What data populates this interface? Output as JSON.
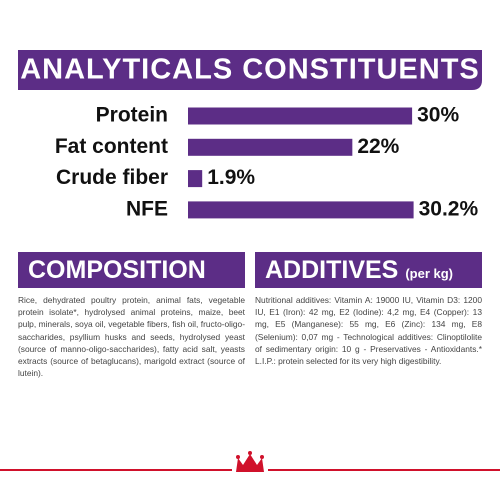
{
  "chart_data": {
    "type": "bar",
    "title": "ANALYTICALS CONSTITUENTS",
    "categories": [
      "Protein",
      "Fat content",
      "Crude fiber",
      "NFE"
    ],
    "values": [
      30,
      22,
      1.9,
      30.2
    ],
    "value_labels": [
      "30%",
      "22%",
      "1.9%",
      "30.2%"
    ],
    "color": "#5c2d86"
  },
  "composition": {
    "title": "COMPOSITION",
    "text": "Rice, dehydrated poultry protein, animal fats, vegetable protein isolate*, hydrolysed animal proteins, maize, beet pulp, minerals, soya oil, vegetable fibers, fish oil, fructo-oligo-saccharides, psyllium husks and seeds, hydrolysed yeast (source of manno-oligo-saccharides), fatty acid salt, yeasts extracts (source of betaglucans), marigold extract (source of lutein)."
  },
  "additives": {
    "title": "ADDITIVES",
    "subtitle": "(per kg)",
    "text": "Nutritional additives: Vitamin A: 19000 IU, Vitamin D3: 1200 IU, E1 (Iron): 42 mg, E2 (Iodine): 4,2 mg, E4 (Copper): 13 mg, E5 (Manganese): 55 mg, E6 (Zinc): 134 mg, E8 (Selenium): 0,07 mg - Technological additives: Clinoptilolite of sedimentary origin: 10 g - Preservatives - Antioxidants.* L.I.P.: protein selected for its very high digestibility."
  }
}
